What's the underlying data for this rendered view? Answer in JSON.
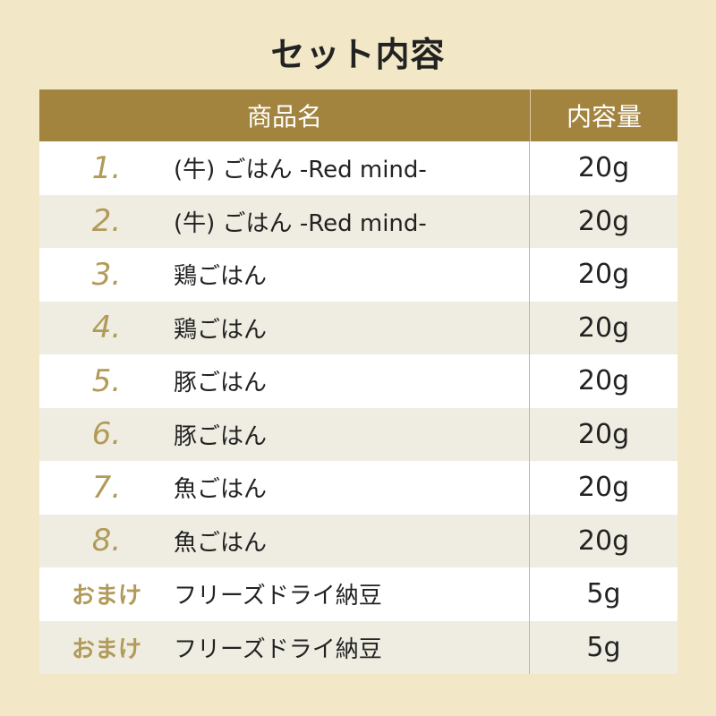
{
  "title": "セット内容",
  "header": {
    "name": "商品名",
    "amount": "内容量"
  },
  "colors": {
    "header_bg": "#a2843f",
    "number": "#b29a58",
    "row_alt": "#efede2",
    "background": "#f2e7c6"
  },
  "rows": [
    {
      "num": "1.",
      "name": "(牛) ごはん -Red mind-",
      "amount": "20g"
    },
    {
      "num": "2.",
      "name": "(牛) ごはん -Red mind-",
      "amount": "20g"
    },
    {
      "num": "3.",
      "name": "鶏ごはん",
      "amount": "20g"
    },
    {
      "num": "4.",
      "name": "鶏ごはん",
      "amount": "20g"
    },
    {
      "num": "5.",
      "name": "豚ごはん",
      "amount": "20g"
    },
    {
      "num": "6.",
      "name": "豚ごはん",
      "amount": "20g"
    },
    {
      "num": "7.",
      "name": "魚ごはん",
      "amount": "20g"
    },
    {
      "num": "8.",
      "name": "魚ごはん",
      "amount": "20g"
    },
    {
      "num": "おまけ",
      "name": "フリーズドライ納豆",
      "amount": "5g"
    },
    {
      "num": "おまけ",
      "name": "フリーズドライ納豆",
      "amount": "5g"
    }
  ]
}
